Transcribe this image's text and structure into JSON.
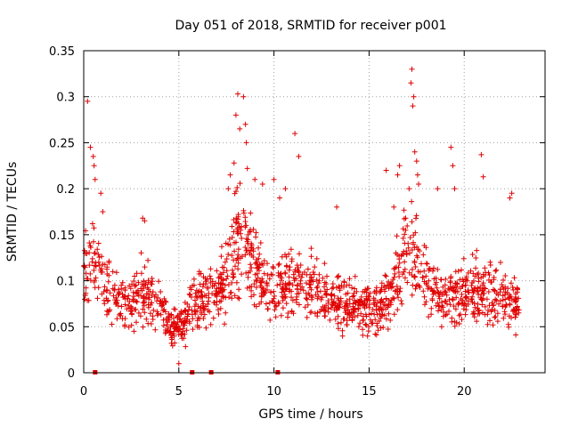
{
  "chart_data": {
    "type": "scatter",
    "title": "Day 051 of 2018, SRMTID for receiver p001",
    "xlabel": "GPS time / hours",
    "ylabel": "SRMTID / TECUs",
    "xlim": [
      0,
      24.25
    ],
    "ylim": [
      0,
      0.35
    ],
    "xticks": [
      0,
      5,
      10,
      15,
      20
    ],
    "xtick_labels": [
      "0",
      "5",
      "10",
      "15",
      "20"
    ],
    "yticks": [
      0,
      0.05,
      0.1,
      0.15,
      0.2,
      0.25,
      0.3,
      0.35
    ],
    "ytick_labels": [
      "0",
      "0.05",
      "0.1",
      "0.15",
      "0.2",
      "0.25",
      "0.3",
      "0.35"
    ],
    "grid": true,
    "marker": "+",
    "color": "#e00000",
    "profile": [
      [
        0.0,
        0.11
      ],
      [
        0.5,
        0.125
      ],
      [
        1.0,
        0.105
      ],
      [
        1.5,
        0.09
      ],
      [
        2.0,
        0.08
      ],
      [
        2.5,
        0.07
      ],
      [
        3.0,
        0.09
      ],
      [
        3.5,
        0.085
      ],
      [
        4.0,
        0.07
      ],
      [
        4.5,
        0.055
      ],
      [
        5.0,
        0.05
      ],
      [
        5.5,
        0.06
      ],
      [
        6.0,
        0.075
      ],
      [
        6.5,
        0.08
      ],
      [
        7.0,
        0.085
      ],
      [
        7.5,
        0.11
      ],
      [
        8.0,
        0.14
      ],
      [
        8.5,
        0.14
      ],
      [
        9.0,
        0.12
      ],
      [
        9.5,
        0.09
      ],
      [
        10.0,
        0.085
      ],
      [
        10.5,
        0.095
      ],
      [
        11.0,
        0.1
      ],
      [
        11.5,
        0.095
      ],
      [
        12.0,
        0.09
      ],
      [
        12.5,
        0.085
      ],
      [
        13.0,
        0.08
      ],
      [
        13.5,
        0.075
      ],
      [
        14.0,
        0.075
      ],
      [
        14.5,
        0.075
      ],
      [
        15.0,
        0.07
      ],
      [
        15.5,
        0.07
      ],
      [
        16.0,
        0.075
      ],
      [
        16.5,
        0.1
      ],
      [
        17.0,
        0.13
      ],
      [
        17.5,
        0.13
      ],
      [
        18.0,
        0.1
      ],
      [
        18.5,
        0.085
      ],
      [
        19.0,
        0.08
      ],
      [
        19.5,
        0.085
      ],
      [
        20.0,
        0.085
      ],
      [
        20.5,
        0.09
      ],
      [
        21.0,
        0.09
      ],
      [
        21.5,
        0.085
      ],
      [
        22.0,
        0.08
      ],
      [
        22.5,
        0.075
      ],
      [
        22.9,
        0.075
      ]
    ],
    "series": [
      {
        "name": "outliers",
        "x": [
          0.2,
          0.35,
          0.5,
          0.55,
          0.6,
          0.9,
          1.0,
          3.1,
          3.2,
          5.0,
          7.6,
          7.7,
          7.9,
          8.0,
          8.1,
          8.2,
          8.4,
          8.5,
          8.55,
          8.6,
          9.0,
          9.4,
          10.0,
          10.3,
          10.6,
          11.1,
          11.3,
          13.3,
          15.9,
          16.3,
          16.5,
          16.6,
          17.1,
          17.2,
          17.25,
          17.3,
          17.35,
          17.4,
          17.5,
          17.55,
          17.6,
          18.6,
          19.3,
          19.4,
          19.5,
          20.9,
          21.0,
          22.4,
          22.5
        ],
        "y": [
          0.295,
          0.245,
          0.235,
          0.225,
          0.21,
          0.195,
          0.175,
          0.168,
          0.165,
          0.01,
          0.2,
          0.215,
          0.228,
          0.28,
          0.303,
          0.265,
          0.3,
          0.27,
          0.25,
          0.222,
          0.21,
          0.205,
          0.21,
          0.19,
          0.2,
          0.26,
          0.235,
          0.18,
          0.22,
          0.18,
          0.215,
          0.225,
          0.2,
          0.315,
          0.33,
          0.29,
          0.3,
          0.24,
          0.23,
          0.215,
          0.205,
          0.2,
          0.245,
          0.225,
          0.2,
          0.237,
          0.213,
          0.19,
          0.195
        ]
      }
    ],
    "gap_markers": {
      "x": [
        0.6,
        5.7,
        6.7,
        10.2
      ],
      "y": 0
    }
  }
}
